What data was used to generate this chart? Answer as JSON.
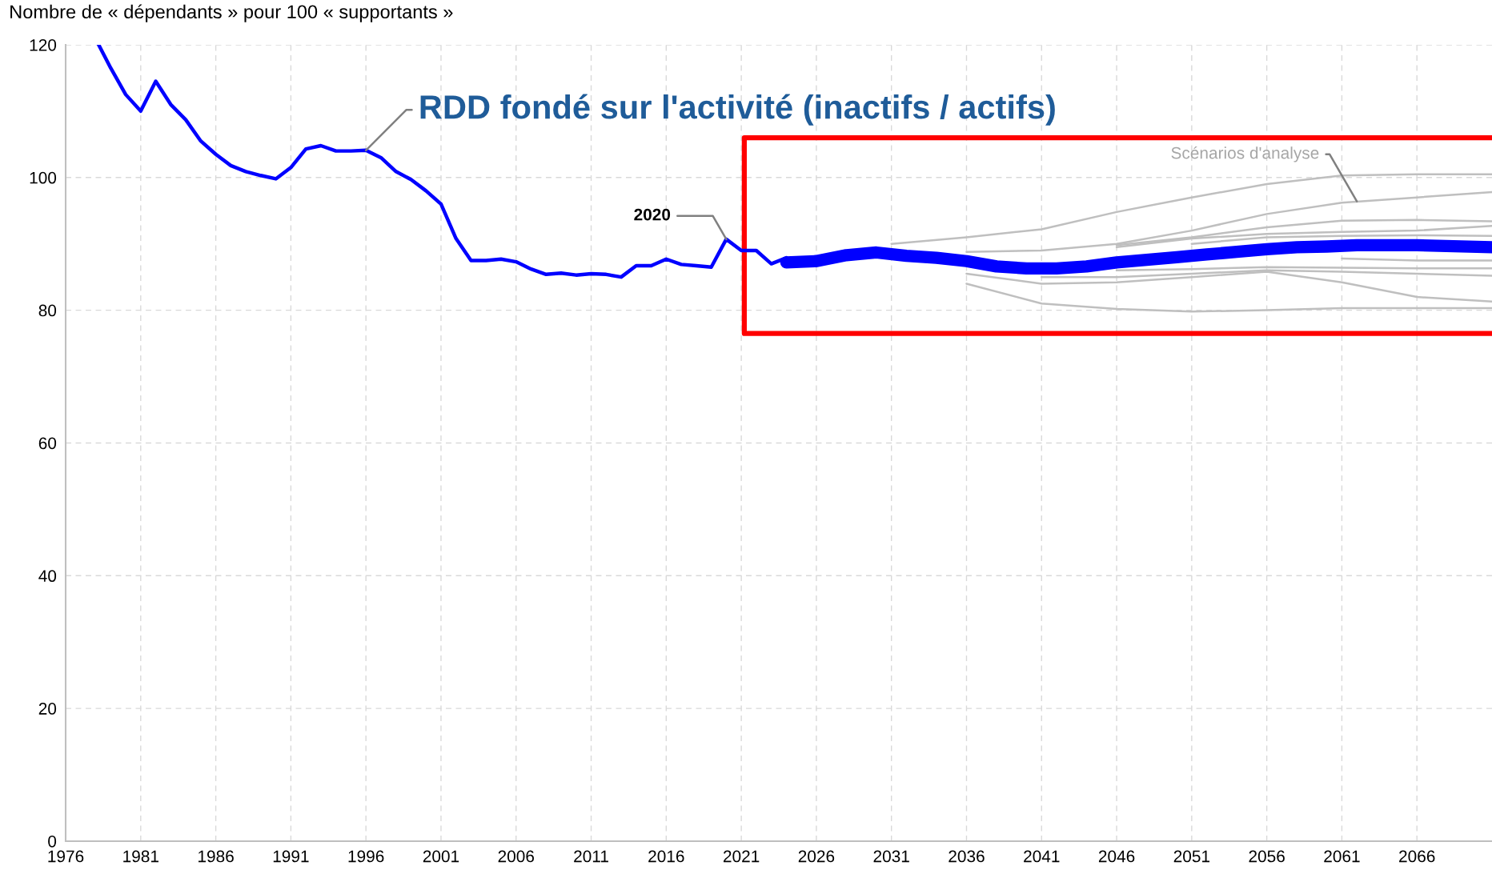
{
  "chart_data": {
    "type": "line",
    "ylabel": "Nombre de « dépendants » pour 100 « supportants »",
    "xlim": [
      1976,
      2071
    ],
    "ylim": [
      0,
      120
    ],
    "xticks": [
      1976,
      1981,
      1986,
      1991,
      1996,
      2001,
      2006,
      2011,
      2016,
      2021,
      2026,
      2031,
      2036,
      2041,
      2046,
      2051,
      2056,
      2061,
      2066
    ],
    "yticks": [
      0,
      20,
      40,
      60,
      80,
      100,
      120
    ],
    "grid": true,
    "line_style": "solid",
    "marker": "none",
    "series": [
      {
        "color": "#0000ff",
        "x": [
          1978.2,
          1979,
          1980,
          1981,
          1982,
          1983,
          1984,
          1985,
          1986,
          1987,
          1988,
          1989,
          1990,
          1991,
          1992,
          1993,
          1994,
          1995,
          1996,
          1997,
          1998,
          1999,
          2000,
          2001,
          2002,
          2003,
          2004,
          2005,
          2006,
          2007,
          2008,
          2009,
          2010,
          2011,
          2012,
          2013,
          2014,
          2015,
          2016,
          2017,
          2018,
          2019,
          2020,
          2021,
          2022,
          2023,
          2024
        ],
        "values": [
          120,
          116.5,
          112.5,
          110,
          114.5,
          111,
          108.7,
          105.5,
          103.5,
          101.8,
          100.9,
          100.3,
          99.8,
          101.5,
          104.3,
          104.8,
          104,
          104,
          104.1,
          103,
          100.9,
          99.7,
          98,
          96,
          90.8,
          87.5,
          87.5,
          87.7,
          87.3,
          86.2,
          85.4,
          85.6,
          85.3,
          85.5,
          85.4,
          85,
          86.7,
          86.7,
          87.7,
          86.9,
          86.7,
          86.5,
          90.7,
          89,
          89,
          87,
          87.9
        ]
      },
      {
        "color": "#ff0000",
        "x": [
          2071,
          2021.2,
          2021.2,
          2071
        ],
        "values": [
          106,
          106,
          76.5,
          76.5
        ]
      },
      {
        "color": "#bfbfbf",
        "x": [
          2031,
          2036,
          2041,
          2046,
          2051,
          2056,
          2061,
          2066,
          2071
        ],
        "values": [
          90,
          91,
          92.2,
          94.8,
          97,
          99,
          100.3,
          100.5,
          100.5
        ]
      },
      {
        "color": "#bfbfbf",
        "x": [
          2036,
          2041,
          2046,
          2051,
          2056,
          2061,
          2066,
          2071
        ],
        "values": [
          88.8,
          89,
          90,
          92,
          94.5,
          96.2,
          97,
          97.8
        ]
      },
      {
        "color": "#bfbfbf",
        "x": [
          2046,
          2051,
          2056,
          2061,
          2066,
          2071
        ],
        "values": [
          89.8,
          91,
          92.5,
          93.5,
          93.6,
          93.4
        ]
      },
      {
        "color": "#bfbfbf",
        "x": [
          2046,
          2051,
          2056,
          2061,
          2066,
          2071
        ],
        "values": [
          89.5,
          90.8,
          91.5,
          91.8,
          92,
          92.7
        ]
      },
      {
        "color": "#bfbfbf",
        "x": [
          2051,
          2056,
          2061,
          2066,
          2071
        ],
        "values": [
          90,
          91,
          91.2,
          91.3,
          91.2
        ]
      },
      {
        "color": "#bfbfbf",
        "x": [
          2036,
          2041,
          2046,
          2051,
          2056,
          2061,
          2066,
          2071
        ],
        "values": [
          84,
          81,
          80.2,
          79.8,
          80,
          80.3,
          80.3,
          80.3
        ]
      },
      {
        "color": "#bfbfbf",
        "x": [
          2036,
          2041,
          2046,
          2051,
          2056,
          2061,
          2066,
          2071
        ],
        "values": [
          85.5,
          84,
          84.2,
          85,
          85.8,
          84.2,
          82,
          81.3
        ]
      },
      {
        "color": "#bfbfbf",
        "x": [
          2041,
          2046,
          2051,
          2056,
          2061,
          2066,
          2071
        ],
        "values": [
          85,
          85,
          85.5,
          86,
          85.8,
          85.5,
          85.2
        ]
      },
      {
        "color": "#bfbfbf",
        "x": [
          2046,
          2051,
          2056,
          2061,
          2066,
          2071
        ],
        "values": [
          86,
          86.2,
          86.5,
          86.4,
          86.3,
          86.3
        ]
      },
      {
        "color": "#bfbfbf",
        "x": [
          2061,
          2066,
          2071
        ],
        "values": [
          87.8,
          87.5,
          87.5
        ]
      },
      {
        "color": "#0000ff",
        "x": [
          2024,
          2026,
          2028,
          2030,
          2032,
          2034,
          2036,
          2038,
          2040,
          2042,
          2044,
          2046,
          2048,
          2050,
          2052,
          2054,
          2056,
          2058,
          2060,
          2062,
          2066,
          2071
        ],
        "values": [
          87.2,
          87.4,
          88.3,
          88.7,
          88.2,
          87.9,
          87.4,
          86.6,
          86.3,
          86.3,
          86.6,
          87.2,
          87.6,
          88,
          88.4,
          88.8,
          89.2,
          89.5,
          89.6,
          89.8,
          89.8,
          89.5
        ]
      }
    ],
    "annotations": [
      {
        "text": "RDD fondé sur l'activité (inactifs / actifs)",
        "x": 1996,
        "y": 104.1
      },
      {
        "text": "2020",
        "x": 2020,
        "y": 90.7
      },
      {
        "text": "Scénarios d'analyse",
        "x": 2062,
        "y": 96.4
      }
    ]
  }
}
